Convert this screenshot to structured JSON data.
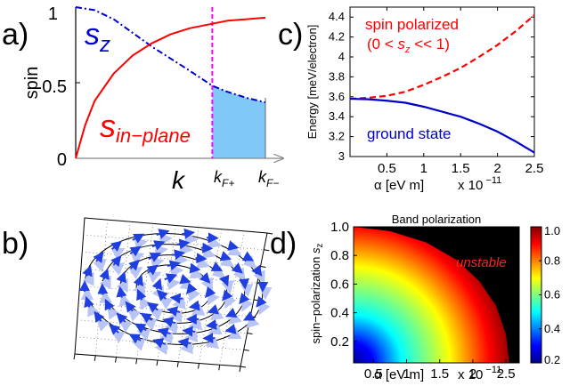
{
  "panels": {
    "a": {
      "label": "a)"
    },
    "b": {
      "label": "b)"
    },
    "c": {
      "label": "c)"
    },
    "d": {
      "label": "d)"
    }
  },
  "chart_data": [
    {
      "id": "a",
      "type": "line",
      "ylabel": "spin",
      "xlabel": "k",
      "ylim": [
        0,
        1
      ],
      "yticks": [
        "0",
        "0.5",
        "1"
      ],
      "xmarkers": [
        {
          "label_main": "k",
          "label_sub": "F+",
          "x": 0.72
        },
        {
          "label_main": "k",
          "label_sub": "F−",
          "x": 1.0
        }
      ],
      "series": [
        {
          "name": "s_z",
          "label_main": "s",
          "label_sub": "z",
          "color": "#0000cc",
          "style": "dash-dot",
          "x": [
            0,
            0.1,
            0.2,
            0.3,
            0.4,
            0.5,
            0.6,
            0.72,
            0.8,
            0.9,
            1.0
          ],
          "y": [
            1.0,
            0.98,
            0.92,
            0.83,
            0.74,
            0.66,
            0.58,
            0.48,
            0.44,
            0.4,
            0.37
          ]
        },
        {
          "name": "s_in-plane",
          "label_main": "s",
          "label_sub": "in−plane",
          "color": "#ff0000",
          "style": "solid",
          "x": [
            0,
            0.05,
            0.1,
            0.2,
            0.3,
            0.4,
            0.5,
            0.6,
            0.72,
            0.8,
            0.9,
            1.0
          ],
          "y": [
            0.0,
            0.22,
            0.38,
            0.56,
            0.68,
            0.76,
            0.82,
            0.86,
            0.89,
            0.91,
            0.92,
            0.93
          ]
        }
      ],
      "shaded_region": {
        "x_from": 0.72,
        "x_to": 1.0,
        "under": "s_z",
        "color": "#80c8f8"
      },
      "marker_line_color": "#ff00ff"
    },
    {
      "id": "b",
      "type": "other",
      "description": "3D perspective view of a spin vector field (blue arrows) on concentric black circles over a dotted grid",
      "arrow_color": "#1f3fe0",
      "shadow_color": "#b8c4f4"
    },
    {
      "id": "c",
      "type": "line",
      "xlabel": "α [eV m]",
      "xmultiplier_base": "x 10",
      "xmultiplier_exp": "−11",
      "ylabel": "Energy [meV/electron]",
      "xlim": [
        0,
        2.5
      ],
      "ylim": [
        3.0,
        4.5
      ],
      "xticks": [
        0.5,
        1,
        1.5,
        2,
        2.5
      ],
      "yticks": [
        3,
        3.2,
        3.4,
        3.6,
        3.8,
        4,
        4.2,
        4.4
      ],
      "annotations": [
        {
          "text": "spin polarized",
          "color": "#ff0000"
        },
        {
          "text": "ground state",
          "color": "#0000cc"
        }
      ],
      "annotation_formula": {
        "open": "(0 < ",
        "var": "s",
        "sub": "z",
        "close": " << 1)",
        "color": "#ff0000"
      },
      "series": [
        {
          "name": "spin polarized",
          "color": "#ff0000",
          "style": "dashed",
          "x": [
            0,
            0.25,
            0.5,
            0.75,
            1.0,
            1.25,
            1.5,
            1.75,
            2.0,
            2.25,
            2.5
          ],
          "y": [
            3.58,
            3.59,
            3.61,
            3.65,
            3.72,
            3.8,
            3.89,
            4.0,
            4.12,
            4.26,
            4.42
          ]
        },
        {
          "name": "ground state",
          "color": "#0000cc",
          "style": "solid",
          "x": [
            0,
            0.25,
            0.5,
            0.75,
            1.0,
            1.25,
            1.5,
            1.75,
            2.0,
            2.25,
            2.5
          ],
          "y": [
            3.58,
            3.575,
            3.56,
            3.54,
            3.5,
            3.45,
            3.4,
            3.33,
            3.25,
            3.15,
            3.04
          ]
        }
      ]
    },
    {
      "id": "d",
      "type": "heatmap",
      "title": "Band polarization",
      "xlabel": "α [eV m]",
      "xmultiplier_base": "x 10",
      "xmultiplier_exp": "−11",
      "ylabel": "spin−polarization",
      "ylabel_sub": "z",
      "ylabel_sym": "s",
      "xlim": [
        0.2,
        2.7
      ],
      "ylim": [
        0.05,
        1.0
      ],
      "xticks": [
        0.5,
        1,
        1.5,
        2,
        2.5
      ],
      "yticks": [
        0.2,
        0.4,
        0.6,
        0.8,
        1.0
      ],
      "colorbar": {
        "min": 0.2,
        "max": 1.0,
        "ticks": [
          "0.2",
          "0.4",
          "0.6",
          "0.8",
          "1.0"
        ]
      },
      "annotation": {
        "text": "unstable",
        "color": "#ff2020"
      },
      "unstable_color": "#000000",
      "boundary": {
        "alpha": [
          2.55,
          2.5,
          2.35,
          2.1,
          1.75,
          1.3,
          0.75,
          0.2
        ],
        "sz": [
          0.05,
          0.25,
          0.45,
          0.62,
          0.77,
          0.89,
          0.97,
          1.0
        ]
      }
    }
  ]
}
